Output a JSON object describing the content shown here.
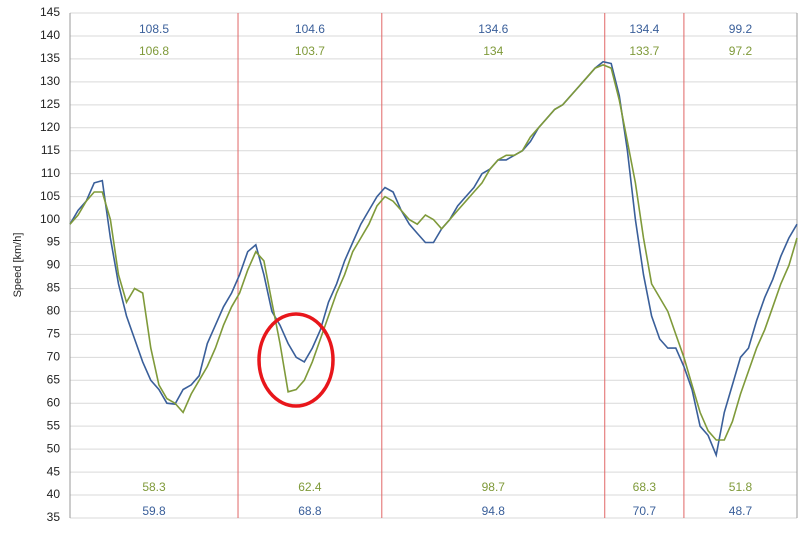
{
  "chart_data": {
    "type": "line",
    "ylabel": "Speed [km/h]",
    "ylim": [
      35,
      145
    ],
    "yticks": [
      35,
      40,
      45,
      50,
      55,
      60,
      65,
      70,
      75,
      80,
      85,
      90,
      95,
      100,
      105,
      110,
      115,
      120,
      125,
      130,
      135,
      140,
      145
    ],
    "grid": true,
    "dividers": [
      20.8,
      38.6,
      66.2,
      76
    ],
    "divider_color": "#e06666",
    "series": [
      {
        "color": "#3a5f9a",
        "values": [
          99,
          102,
          104,
          108,
          108.5,
          96,
          86,
          79,
          74,
          69,
          65,
          63,
          60,
          59.8,
          63,
          64,
          66,
          73,
          77,
          81,
          84,
          88,
          93,
          94.5,
          88,
          80,
          77,
          73,
          70,
          69,
          72,
          76,
          82,
          86,
          91,
          95,
          99,
          102,
          105,
          107,
          106,
          102,
          99,
          97,
          95,
          95,
          98,
          100,
          103,
          105,
          107,
          110,
          111,
          113,
          113,
          114,
          115,
          117,
          120,
          122,
          124,
          125,
          127,
          129,
          131,
          133,
          134.4,
          134,
          127,
          115,
          100,
          88,
          79,
          74,
          72,
          72,
          68,
          63,
          55,
          53,
          48.7,
          58,
          64,
          70,
          72,
          78,
          83,
          87,
          92,
          96,
          99
        ],
        "max_labels": [
          108.5,
          104.6,
          134.6,
          134.4,
          99.2
        ],
        "min_labels": [
          59.8,
          68.8,
          94.8,
          70.7,
          48.7
        ]
      },
      {
        "color": "#7f9a3a",
        "values": [
          99,
          101,
          104,
          106,
          106,
          100,
          88,
          82,
          85,
          84,
          72,
          64,
          61,
          60,
          58,
          62,
          65,
          68,
          72,
          77,
          81,
          84,
          89,
          93,
          91,
          82,
          73,
          62.5,
          63,
          65,
          69,
          74,
          79,
          84,
          88,
          93,
          96,
          99,
          103,
          105,
          104,
          102,
          100,
          99,
          101,
          100,
          98,
          100,
          102,
          104,
          106,
          108,
          111,
          113,
          114,
          114,
          115,
          118,
          120,
          122,
          124,
          125,
          127,
          129,
          131,
          133,
          133.7,
          133,
          126,
          117,
          108,
          96,
          86,
          83,
          80,
          75,
          70,
          64,
          58,
          54,
          52,
          52,
          56,
          62,
          67,
          72,
          76,
          81,
          86,
          90,
          96
        ],
        "max_labels": [
          106.8,
          103.7,
          134.0,
          133.7,
          97.2
        ],
        "min_labels": [
          58.3,
          62.4,
          98.7,
          68.3,
          51.8
        ]
      }
    ]
  }
}
